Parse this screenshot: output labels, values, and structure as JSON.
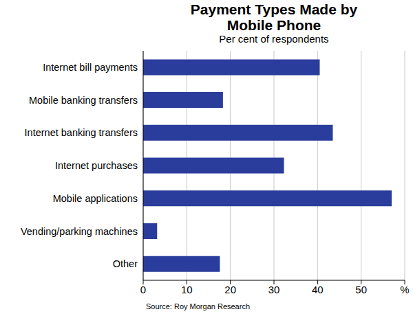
{
  "chart_data": {
    "type": "bar",
    "title": "Payment Types Made by Mobile Phone",
    "subtitle": "Per cent of respondents",
    "source": "Source: Roy Morgan Research",
    "orientation": "horizontal",
    "categories": [
      "Internet bill payments",
      "Mobile banking transfers",
      "Internet banking transfers",
      "Internet purchases",
      "Mobile applications",
      "Vending/parking machines",
      "Other"
    ],
    "values": [
      40.5,
      18.3,
      43.5,
      32.3,
      57,
      3.2,
      17.6
    ],
    "color": "#2b3d9c",
    "xlim": [
      0,
      60
    ],
    "xticks": [
      0,
      10,
      20,
      30,
      40,
      50,
      {
        "value": 60,
        "label": "%"
      }
    ],
    "grid": true
  }
}
